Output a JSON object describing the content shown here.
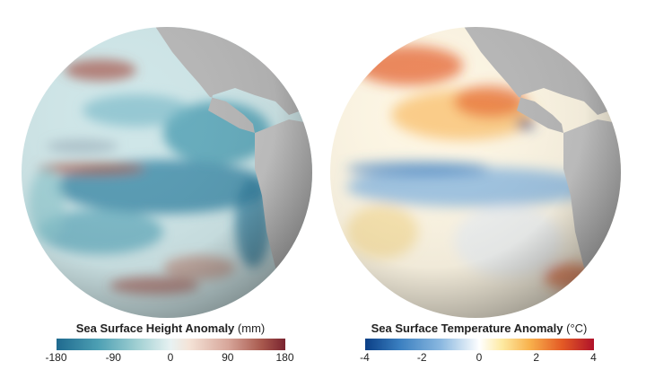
{
  "maps": [
    {
      "id": "ssh",
      "title": "Sea Surface Height Anomaly",
      "unit": "(mm)",
      "ticks": [
        "-180",
        "-90",
        "0",
        "90",
        "180"
      ],
      "tick_values": [
        -180,
        -90,
        0,
        90,
        180
      ],
      "colors": [
        "#1f6a8f",
        "#9fcfd2",
        "#ffffff",
        "#d7a69a",
        "#7a2430"
      ]
    },
    {
      "id": "sst",
      "title": "Sea Surface Temperature Anomaly",
      "unit": "(°C)",
      "ticks": [
        "-4",
        "-2",
        "0",
        "2",
        "4"
      ],
      "tick_values": [
        -4,
        -2,
        0,
        2,
        4
      ],
      "colors": [
        "#0b3f86",
        "#8ab8e0",
        "#ffffff",
        "#f8b14c",
        "#b0122a"
      ]
    }
  ]
}
